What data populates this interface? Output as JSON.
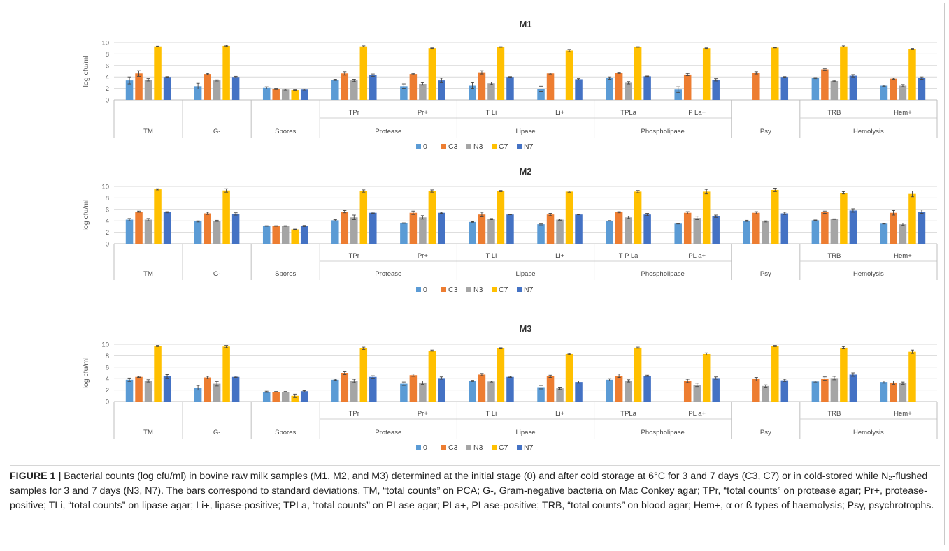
{
  "legend_labels": [
    "0",
    "C3",
    "N3",
    "C7",
    "N7"
  ],
  "colors": {
    "s0": "#5b9bd5",
    "C3": "#ed7d31",
    "N3": "#a5a5a5",
    "C7": "#ffc000",
    "N7": "#4472c4"
  },
  "caption": {
    "label": "FIGURE 1 |",
    "text": " Bacterial counts (log cfu/ml) in bovine raw milk samples (M1, M2, and M3) determined at the initial stage (0) and after cold storage at 6°C for 3 and 7 days (C3, C7) or in cold-stored while N₂-flushed samples for 3 and 7 days (N3, N7). The bars correspond to standard deviations. TM, “total counts” on PCA; G-, Gram-negative bacteria on Mac Conkey agar; TPr, “total counts” on protease agar; Pr+, protease-positive; TLi, “total counts” on lipase agar; Li+, lipase-positive; TPLa, “total counts” on PLase agar; PLa+, PLase-positive; TRB, “total counts” on blood agar; Hem+, α or ß types of haemolysis; Psy, psychrotrophs."
  },
  "chart_data": [
    {
      "type": "bar",
      "title": "M1",
      "ylabel": "log cfu/ml",
      "ylim": [
        0,
        10
      ],
      "yticks": [
        0,
        2,
        4,
        6,
        8,
        10
      ],
      "grid": true,
      "legend_position": "bottom",
      "categories": [
        "",
        "",
        "",
        "TPr",
        "Pr+",
        "T Li",
        "Li+",
        "TPLa",
        "P La+",
        "",
        "TRB",
        "Hem+"
      ],
      "groups": [
        {
          "label": "TM",
          "span": 1
        },
        {
          "label": "G-",
          "span": 1
        },
        {
          "label": "Spores",
          "span": 1
        },
        {
          "label": "Protease",
          "span": 2
        },
        {
          "label": "Lipase",
          "span": 2
        },
        {
          "label": "Phospholipase",
          "span": 2
        },
        {
          "label": "Psy",
          "span": 1
        },
        {
          "label": "Hemolysis",
          "span": 2
        }
      ],
      "series": [
        {
          "name": "0",
          "values": [
            3.4,
            2.4,
            2.1,
            3.5,
            2.4,
            2.5,
            1.9,
            3.8,
            1.8,
            null,
            3.8,
            2.5
          ],
          "errors": [
            0.6,
            0.5,
            0.2,
            0.1,
            0.4,
            0.5,
            0.5,
            0.2,
            0.5,
            null,
            0.1,
            0.1
          ]
        },
        {
          "name": "C3",
          "values": [
            4.6,
            4.5,
            1.9,
            4.6,
            4.5,
            4.8,
            4.6,
            4.7,
            4.4,
            4.7,
            5.3,
            3.7
          ],
          "errors": [
            0.5,
            0.1,
            0.1,
            0.3,
            0.1,
            0.3,
            0.1,
            0.1,
            0.2,
            0.2,
            0.1,
            0.1
          ]
        },
        {
          "name": "N3",
          "values": [
            3.5,
            3.4,
            1.8,
            3.4,
            2.8,
            2.9,
            null,
            3.0,
            null,
            null,
            3.3,
            2.5
          ],
          "errors": [
            0.2,
            0.1,
            0.1,
            0.2,
            0.2,
            0.2,
            null,
            0.2,
            null,
            null,
            0.1,
            0.2
          ]
        },
        {
          "name": "C7",
          "values": [
            9.3,
            9.4,
            1.7,
            9.3,
            9.0,
            9.2,
            8.6,
            9.2,
            9.0,
            9.1,
            9.3,
            8.9
          ],
          "errors": [
            0.05,
            0.1,
            0.05,
            0.1,
            0.05,
            0.05,
            0.2,
            0.05,
            0.05,
            0.05,
            0.1,
            0.05
          ]
        },
        {
          "name": "N7",
          "values": [
            4.0,
            4.0,
            1.8,
            4.3,
            3.4,
            4.0,
            3.6,
            4.1,
            3.5,
            4.0,
            4.2,
            3.8
          ],
          "errors": [
            0.05,
            0.1,
            0.1,
            0.2,
            0.4,
            0.05,
            0.1,
            0.05,
            0.2,
            0.05,
            0.2,
            0.2
          ]
        }
      ]
    },
    {
      "type": "bar",
      "title": "M2",
      "ylabel": "log cfu/ml",
      "ylim": [
        0,
        10
      ],
      "yticks": [
        0,
        2,
        4,
        6,
        8,
        10
      ],
      "grid": true,
      "legend_position": "bottom",
      "categories": [
        "",
        "",
        "",
        "TPr",
        "Pr+",
        "T Li",
        "Li+",
        "T P La",
        "PL a+",
        "",
        "TRB",
        "Hem+"
      ],
      "groups": [
        {
          "label": "TM",
          "span": 1
        },
        {
          "label": "G-",
          "span": 1
        },
        {
          "label": "Spores",
          "span": 1
        },
        {
          "label": "Protease",
          "span": 2
        },
        {
          "label": "Lipase",
          "span": 2
        },
        {
          "label": "Phospholipase",
          "span": 2
        },
        {
          "label": "Psy",
          "span": 1
        },
        {
          "label": "Hemolysis",
          "span": 2
        }
      ],
      "series": [
        {
          "name": "0",
          "values": [
            4.2,
            3.9,
            3.1,
            4.1,
            3.6,
            3.8,
            3.4,
            4.0,
            3.5,
            4.0,
            4.1,
            3.5
          ],
          "errors": [
            0.2,
            0.1,
            0.05,
            0.1,
            0.05,
            0.05,
            0.1,
            0.05,
            0.05,
            0.1,
            0.05,
            0.05
          ]
        },
        {
          "name": "C3",
          "values": [
            5.6,
            5.3,
            3.1,
            5.6,
            5.4,
            5.1,
            5.1,
            5.5,
            5.4,
            5.4,
            5.5,
            5.4
          ],
          "errors": [
            0.1,
            0.2,
            0.05,
            0.2,
            0.3,
            0.4,
            0.2,
            0.1,
            0.2,
            0.2,
            0.2,
            0.4
          ]
        },
        {
          "name": "N3",
          "values": [
            4.2,
            4.0,
            3.1,
            4.6,
            4.6,
            4.3,
            4.2,
            4.6,
            4.5,
            3.9,
            4.3,
            3.4
          ],
          "errors": [
            0.2,
            0.1,
            0.05,
            0.4,
            0.3,
            0.1,
            0.1,
            0.2,
            0.3,
            0.1,
            0.05,
            0.2
          ]
        },
        {
          "name": "C7",
          "values": [
            9.5,
            9.3,
            2.5,
            9.2,
            9.2,
            9.2,
            9.1,
            9.1,
            9.1,
            9.4,
            8.9,
            8.7
          ],
          "errors": [
            0.1,
            0.3,
            0.05,
            0.2,
            0.2,
            0.1,
            0.1,
            0.2,
            0.4,
            0.3,
            0.2,
            0.5
          ]
        },
        {
          "name": "N7",
          "values": [
            5.5,
            5.2,
            3.1,
            5.4,
            5.4,
            5.1,
            5.1,
            5.1,
            4.8,
            5.3,
            5.8,
            5.6
          ],
          "errors": [
            0.1,
            0.2,
            0.1,
            0.1,
            0.1,
            0.05,
            0.05,
            0.2,
            0.2,
            0.2,
            0.3,
            0.3
          ]
        }
      ]
    },
    {
      "type": "bar",
      "title": "M3",
      "ylabel": "log cfu/ml",
      "ylim": [
        0,
        10
      ],
      "yticks": [
        0,
        2,
        4,
        6,
        8,
        10
      ],
      "grid": true,
      "legend_position": "bottom",
      "categories": [
        "",
        "",
        "",
        "TPr",
        "Pr+",
        "T Li",
        "Li+",
        "TPLa",
        "PL a+",
        "",
        "TRB",
        "Hem+"
      ],
      "groups": [
        {
          "label": "TM",
          "span": 1
        },
        {
          "label": "G-",
          "span": 1
        },
        {
          "label": "Spores",
          "span": 1
        },
        {
          "label": "Protease",
          "span": 2
        },
        {
          "label": "Lipase",
          "span": 2
        },
        {
          "label": "Phospholipase",
          "span": 2
        },
        {
          "label": "Psy",
          "span": 1
        },
        {
          "label": "Hemolysis",
          "span": 2
        }
      ],
      "series": [
        {
          "name": "0",
          "values": [
            3.8,
            2.4,
            1.7,
            3.8,
            3.1,
            3.6,
            2.5,
            3.8,
            null,
            null,
            3.5,
            3.4
          ],
          "errors": [
            0.3,
            0.4,
            0.1,
            0.1,
            0.3,
            0.1,
            0.3,
            0.2,
            null,
            null,
            0.1,
            0.2
          ]
        },
        {
          "name": "C3",
          "values": [
            4.3,
            4.2,
            1.7,
            5.0,
            4.6,
            4.7,
            4.4,
            4.5,
            3.6,
            3.9,
            4.0,
            3.3
          ],
          "errors": [
            0.1,
            0.2,
            0.05,
            0.3,
            0.2,
            0.2,
            0.2,
            0.3,
            0.3,
            0.3,
            0.3,
            0.3
          ]
        },
        {
          "name": "N3",
          "values": [
            3.6,
            3.1,
            1.7,
            3.6,
            3.3,
            3.5,
            2.3,
            3.6,
            2.9,
            2.7,
            4.1,
            3.2
          ],
          "errors": [
            0.2,
            0.4,
            0.05,
            0.3,
            0.3,
            0.1,
            0.2,
            0.2,
            0.3,
            0.2,
            0.3,
            0.2
          ]
        },
        {
          "name": "C7",
          "values": [
            9.7,
            9.6,
            1.0,
            9.3,
            8.9,
            9.3,
            8.3,
            9.4,
            8.3,
            9.7,
            9.4,
            8.7
          ],
          "errors": [
            0.1,
            0.2,
            0.3,
            0.2,
            0.1,
            0.1,
            0.1,
            0.1,
            0.2,
            0.1,
            0.2,
            0.3
          ]
        },
        {
          "name": "N7",
          "values": [
            4.4,
            4.3,
            1.8,
            4.3,
            4.1,
            4.3,
            3.4,
            4.5,
            4.1,
            3.7,
            4.7,
            null
          ],
          "errors": [
            0.3,
            0.1,
            0.1,
            0.2,
            0.2,
            0.1,
            0.2,
            0.1,
            0.2,
            0.2,
            0.3,
            null
          ]
        }
      ]
    }
  ]
}
